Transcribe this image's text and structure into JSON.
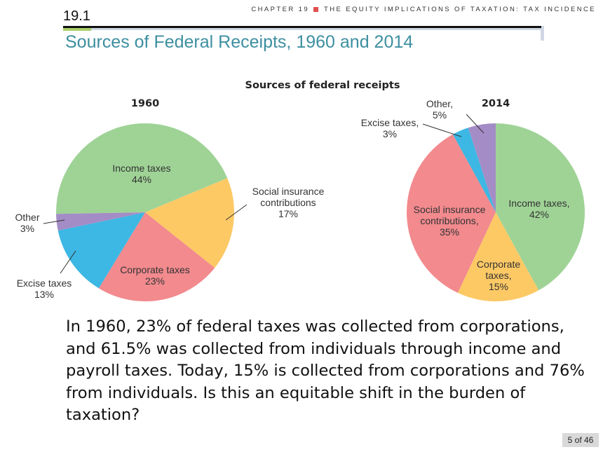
{
  "header": {
    "chapter_label": "CHAPTER 19",
    "chapter_title": "THE EQUITY IMPLICATIONS OF TAXATION: TAX INCIDENCE",
    "section_number": "19.1",
    "title": "Sources of Federal Receipts, 1960 and 2014",
    "accent_color": "#3d8fa0"
  },
  "chart_data": {
    "type": "pie",
    "title": "Sources of federal receipts",
    "charts": [
      {
        "year": "1960",
        "slices": [
          {
            "name": "Income taxes",
            "value": 44,
            "label": [
              "Income taxes",
              "44%"
            ],
            "color": "#9fd396"
          },
          {
            "name": "Social insurance contributions",
            "value": 17,
            "label": [
              "Social insurance",
              "contributions",
              "17%"
            ],
            "color": "#fdc965"
          },
          {
            "name": "Corporate taxes",
            "value": 23,
            "label": [
              "Corporate taxes",
              "23%"
            ],
            "color": "#f28a8e"
          },
          {
            "name": "Excise taxes",
            "value": 13,
            "label": [
              "Excise taxes",
              "13%"
            ],
            "color": "#3db7e3"
          },
          {
            "name": "Other",
            "value": 3,
            "label": [
              "Other",
              "3%"
            ],
            "color": "#a48cc6"
          }
        ]
      },
      {
        "year": "2014",
        "slices": [
          {
            "name": "Income taxes",
            "value": 42,
            "label": [
              "Income taxes,",
              "42%"
            ],
            "color": "#9fd396"
          },
          {
            "name": "Corporate taxes",
            "value": 15,
            "label": [
              "Corporate",
              "taxes,",
              "15%"
            ],
            "color": "#fdc965"
          },
          {
            "name": "Social insurance contributions",
            "value": 35,
            "label": [
              "Social insurance",
              "contributions,",
              "35%"
            ],
            "color": "#f28a8e"
          },
          {
            "name": "Excise taxes",
            "value": 3,
            "label": [
              "Excise taxes,",
              "3%"
            ],
            "color": "#3db7e3"
          },
          {
            "name": "Other",
            "value": 5,
            "label": [
              "Other,",
              "5%"
            ],
            "color": "#a48cc6"
          }
        ]
      }
    ]
  },
  "body_text": "In 1960, 23% of federal taxes was collected from corporations, and 61.5% was collected from individuals through income and payroll taxes. Today, 15% is collected from corporations and 76% from individuals. Is this an equitable shift in the burden of taxation?",
  "pager": "5 of 46"
}
